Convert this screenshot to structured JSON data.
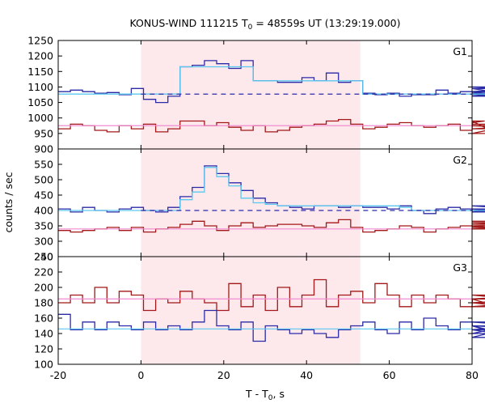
{
  "title_main": "KONUS-WIND 111215 T",
  "title_sub": "0",
  "title_rest": " = 48559s UT (13:29:19.000)",
  "ylabel": "counts / sec",
  "xlabel_main": "T - T",
  "xlabel_sub": "0",
  "xlabel_rest": ", s",
  "colors": {
    "background": "#ffffff",
    "shade": "#fde9ec",
    "blue": "#2b2ba8",
    "cyan": "#5bc8ef",
    "red": "#a31818",
    "pink": "#f08cd0"
  },
  "chart_data": {
    "type": "line",
    "xlim": [
      -20,
      80
    ],
    "x_ticks": [
      -20,
      0,
      20,
      40,
      60,
      80
    ],
    "shade_range": [
      0,
      53
    ],
    "bin_start": -20,
    "bin_width": 2.944,
    "panels": [
      {
        "label": "G1",
        "ylim": [
          900,
          1250
        ],
        "y_ticks": [
          900,
          950,
          1000,
          1050,
          1100,
          1150,
          1200,
          1250
        ],
        "background_level": 1077,
        "series": [
          {
            "name": "",
            "style": "blue",
            "values": [
              1085,
              1090,
              1085,
              1080,
              1082,
              1075,
              1095,
              1060,
              1050,
              1070,
              1165,
              1170,
              1185,
              1175,
              1160,
              1185,
              1120,
              1120,
              1115,
              1115,
              1130,
              1120,
              1145,
              1115,
              1120,
              1080,
              1075,
              1080,
              1070,
              1075,
              1075,
              1090,
              1080,
              1085,
              1080,
              1075,
              1080,
              1095,
              1070,
              1085,
              1100,
              1085,
              1080,
              1085
            ]
          },
          {
            "name": "",
            "style": "cyan",
            "values": [
              1077,
              1077,
              1077,
              1077,
              1077,
              1077,
              1077,
              1077,
              1077,
              1077,
              1165,
              1165,
              1165,
              1165,
              1165,
              1165,
              1120,
              1120,
              1120,
              1120,
              1120,
              1120,
              1120,
              1120,
              1120,
              1077,
              1077,
              1077,
              1077,
              1077,
              1077,
              1077,
              1077,
              1077,
              1077,
              1077,
              1077,
              1077,
              1077,
              1077,
              1077,
              1077,
              1077,
              1077
            ]
          },
          {
            "name": "",
            "style": "red",
            "values": [
              965,
              980,
              975,
              960,
              955,
              975,
              965,
              980,
              955,
              965,
              990,
              990,
              975,
              985,
              970,
              960,
              975,
              955,
              960,
              970,
              975,
              980,
              990,
              995,
              980,
              965,
              970,
              980,
              985,
              975,
              970,
              975,
              980,
              960,
              985,
              990,
              950,
              975,
              975,
              975,
              965,
              980,
              975,
              975
            ]
          },
          {
            "name": "",
            "style": "pink",
            "values": [
              975
            ]
          }
        ]
      },
      {
        "label": "G2",
        "ylim": [
          250,
          600
        ],
        "y_ticks": [
          250,
          300,
          350,
          400,
          450,
          500,
          550
        ],
        "background_level": 400,
        "series": [
          {
            "name": "",
            "style": "blue",
            "values": [
              405,
              395,
              410,
              400,
              395,
              405,
              410,
              400,
              395,
              410,
              445,
              475,
              545,
              520,
              490,
              465,
              440,
              425,
              415,
              410,
              405,
              415,
              415,
              410,
              415,
              410,
              410,
              405,
              415,
              400,
              390,
              405,
              410,
              405,
              395,
              400,
              400,
              405,
              395,
              415,
              400,
              395,
              405,
              395
            ]
          },
          {
            "name": "",
            "style": "cyan",
            "values": [
              400,
              400,
              400,
              400,
              400,
              400,
              400,
              400,
              400,
              400,
              435,
              460,
              540,
              510,
              480,
              440,
              425,
              420,
              415,
              415,
              415,
              415,
              415,
              415,
              415,
              415,
              415,
              415,
              410,
              400,
              400,
              400,
              400,
              400,
              400,
              400,
              400,
              400,
              400,
              400,
              400,
              400,
              400,
              400
            ]
          },
          {
            "name": "",
            "style": "red",
            "values": [
              335,
              330,
              335,
              340,
              345,
              335,
              345,
              330,
              340,
              345,
              355,
              365,
              350,
              335,
              350,
              360,
              345,
              350,
              355,
              355,
              350,
              345,
              360,
              370,
              345,
              330,
              335,
              340,
              350,
              345,
              330,
              340,
              345,
              350,
              345,
              350,
              340,
              345,
              350,
              355,
              365,
              360,
              345,
              340
            ]
          },
          {
            "name": "",
            "style": "pink",
            "values": [
              340
            ]
          }
        ]
      },
      {
        "label": "G3",
        "ylim": [
          100,
          240
        ],
        "y_ticks": [
          100,
          120,
          140,
          160,
          180,
          200,
          220,
          240
        ],
        "background_level": 146,
        "series": [
          {
            "name": "",
            "style": "red",
            "values": [
              180,
              190,
              180,
              200,
              180,
              195,
              190,
              170,
              185,
              180,
              195,
              185,
              180,
              170,
              205,
              175,
              190,
              170,
              200,
              175,
              190,
              210,
              175,
              190,
              195,
              180,
              205,
              190,
              175,
              190,
              180,
              190,
              185,
              175,
              185,
              180,
              180,
              175,
              180,
              185,
              190,
              180,
              185,
              185
            ]
          },
          {
            "name": "",
            "style": "blue",
            "values": [
              165,
              145,
              155,
              145,
              155,
              150,
              145,
              155,
              145,
              150,
              145,
              155,
              170,
              150,
              145,
              155,
              130,
              150,
              145,
              140,
              145,
              140,
              135,
              145,
              150,
              155,
              145,
              140,
              155,
              145,
              160,
              150,
              145,
              155,
              150,
              145,
              140,
              150,
              135,
              155,
              150,
              145,
              155,
              145
            ]
          },
          {
            "name": "",
            "style": "cyan",
            "values": [
              146
            ]
          },
          {
            "name": "",
            "style": "pink",
            "values": [
              185
            ]
          }
        ]
      }
    ]
  }
}
